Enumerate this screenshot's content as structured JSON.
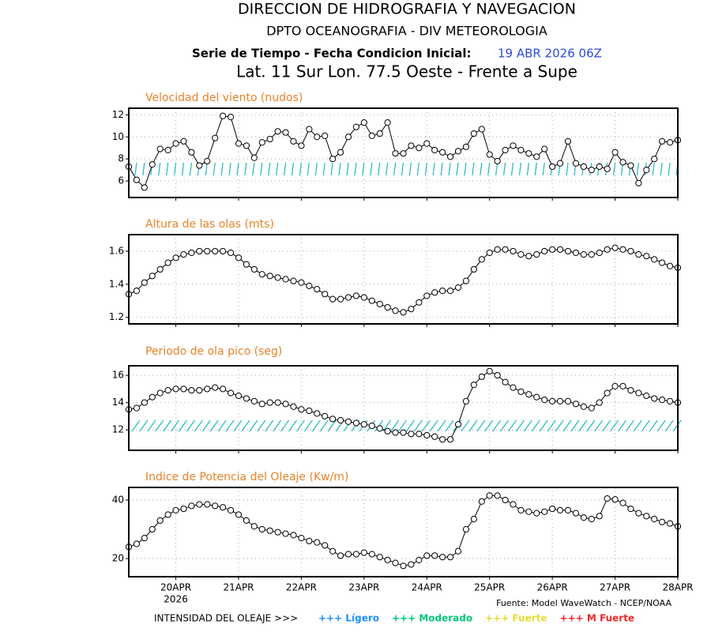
{
  "header": {
    "title": "DIRECCION DE HIDROGRAFIA Y NAVEGACION",
    "subtitle": "DPTO OCEANOGRAFIA - DIV METEOROLOGIA",
    "series_label": "Serie de Tiempo - Fecha Condicion Inicial:",
    "init_date": "19 ABR 2026 06Z",
    "location": "Lat. 11 Sur  Lon. 77.5 Oeste - Frente a Supe"
  },
  "x_axis": {
    "categories": [
      null,
      null,
      null,
      null,
      null,
      null,
      "20APR",
      null,
      null,
      null,
      null,
      null,
      null,
      null,
      "21APR",
      null,
      null,
      null,
      null,
      null,
      null,
      null,
      "22APR",
      null,
      null,
      null,
      null,
      null,
      null,
      null,
      "23APR",
      null,
      null,
      null,
      null,
      null,
      null,
      null,
      "24APR",
      null,
      null,
      null,
      null,
      null,
      null,
      null,
      "25APR",
      null,
      null,
      null,
      null,
      null,
      null,
      null,
      "26APR",
      null,
      null,
      null,
      null,
      null,
      null,
      null,
      "27APR",
      null,
      null,
      null,
      null,
      null,
      null,
      null,
      "28APR"
    ],
    "year": "2026"
  },
  "chart_data": [
    {
      "type": "line",
      "title": "Velocidad del viento (nudos)",
      "color": "#000000",
      "grid": true,
      "ylim": [
        4.5,
        12.6
      ],
      "yticks": [
        6,
        8,
        10,
        12
      ],
      "values": [
        7.3,
        6.1,
        5.4,
        7.5,
        8.9,
        8.8,
        9.4,
        9.6,
        8.6,
        7.4,
        7.8,
        9.9,
        11.9,
        11.8,
        9.4,
        9.2,
        8.1,
        9.5,
        9.8,
        10.5,
        10.4,
        9.6,
        9.2,
        10.7,
        10.0,
        10.1,
        8.0,
        8.6,
        10.0,
        10.9,
        11.3,
        10.1,
        10.3,
        11.3,
        8.5,
        8.5,
        9.2,
        9.0,
        9.4,
        8.8,
        8.6,
        8.2,
        8.7,
        9.1,
        10.3,
        10.7,
        8.4,
        7.8,
        8.8,
        9.2,
        8.8,
        8.5,
        8.2,
        8.9,
        7.3,
        7.6,
        9.6,
        7.6,
        7.3,
        7.0,
        7.3,
        7.1,
        8.6,
        7.7,
        7.4,
        5.8,
        7.0,
        8.0,
        9.6,
        9.5,
        9.7
      ]
    },
    {
      "type": "line",
      "title": "Altura de las olas (mts)",
      "color": "#000000",
      "grid": true,
      "ylim": [
        1.16,
        1.7
      ],
      "yticks": [
        1.2,
        1.4,
        1.6
      ],
      "values": [
        1.34,
        1.36,
        1.41,
        1.45,
        1.49,
        1.53,
        1.56,
        1.58,
        1.59,
        1.6,
        1.6,
        1.6,
        1.6,
        1.59,
        1.56,
        1.52,
        1.49,
        1.46,
        1.45,
        1.44,
        1.43,
        1.42,
        1.41,
        1.39,
        1.37,
        1.34,
        1.31,
        1.31,
        1.32,
        1.33,
        1.32,
        1.3,
        1.28,
        1.26,
        1.24,
        1.23,
        1.25,
        1.29,
        1.33,
        1.35,
        1.36,
        1.36,
        1.38,
        1.42,
        1.49,
        1.55,
        1.59,
        1.61,
        1.61,
        1.6,
        1.58,
        1.57,
        1.58,
        1.6,
        1.61,
        1.61,
        1.6,
        1.59,
        1.58,
        1.58,
        1.59,
        1.61,
        1.62,
        1.61,
        1.6,
        1.58,
        1.57,
        1.55,
        1.53,
        1.51,
        1.5
      ]
    },
    {
      "type": "line",
      "title": "Periodo de ola pico (seg)",
      "color": "#000000",
      "grid": true,
      "ylim": [
        10.5,
        16.7
      ],
      "yticks": [
        12,
        14,
        16
      ],
      "values": [
        13.5,
        13.6,
        14.0,
        14.4,
        14.7,
        14.9,
        15.0,
        15.0,
        14.9,
        14.9,
        15.0,
        15.1,
        15.0,
        14.7,
        14.5,
        14.3,
        14.1,
        13.9,
        14.0,
        14.0,
        13.9,
        13.7,
        13.5,
        13.4,
        13.2,
        13.0,
        12.8,
        12.7,
        12.6,
        12.5,
        12.4,
        12.3,
        12.1,
        11.9,
        11.8,
        11.8,
        11.7,
        11.7,
        11.6,
        11.5,
        11.3,
        11.3,
        12.4,
        14.1,
        15.3,
        15.9,
        16.3,
        16.0,
        15.5,
        15.1,
        14.8,
        14.6,
        14.4,
        14.2,
        14.1,
        14.1,
        14.1,
        13.9,
        13.7,
        13.6,
        14.0,
        14.7,
        15.2,
        15.2,
        14.9,
        14.7,
        14.5,
        14.3,
        14.2,
        14.1,
        14.0
      ]
    },
    {
      "type": "line",
      "title": "Indice de Potencia del Oleaje (Kw/m)",
      "color": "#000000",
      "grid": true,
      "ylim": [
        13.8,
        44.3
      ],
      "yticks": [
        20,
        40
      ],
      "values": [
        24,
        25,
        27,
        30,
        33,
        35,
        36.5,
        37,
        38,
        38.5,
        38.5,
        38,
        37.5,
        36.5,
        35,
        33,
        31,
        30,
        29.5,
        29,
        28.5,
        28,
        27,
        26,
        25.5,
        24.5,
        22.5,
        21,
        21.5,
        21.5,
        22,
        21.5,
        20.5,
        19.5,
        18.5,
        17.5,
        18,
        19.5,
        21,
        21,
        20.5,
        20.5,
        22.5,
        30,
        33.5,
        39.5,
        41.5,
        41.5,
        40,
        38.5,
        36.5,
        36,
        35.5,
        36,
        37,
        36.5,
        36.5,
        35.5,
        34,
        33.5,
        34.5,
        40.5,
        40.2,
        39,
        37,
        35.5,
        34.5,
        33.5,
        32.5,
        32,
        31
      ]
    }
  ],
  "footer": {
    "source": "Fuente: Model WaveWatch - NCEP/NOAA",
    "intensity_label": "INTENSIDAD DEL OLEAJE >>>",
    "intensity_legend": [
      {
        "name": "+++ Lígero",
        "color": "#1e90ff"
      },
      {
        "name": "+++ Moderado",
        "color": "#00c878"
      },
      {
        "name": "+++ Fuerte",
        "color": "#e6dc32"
      },
      {
        "name": "+++ M Fuerte",
        "color": "#f02828"
      }
    ]
  }
}
